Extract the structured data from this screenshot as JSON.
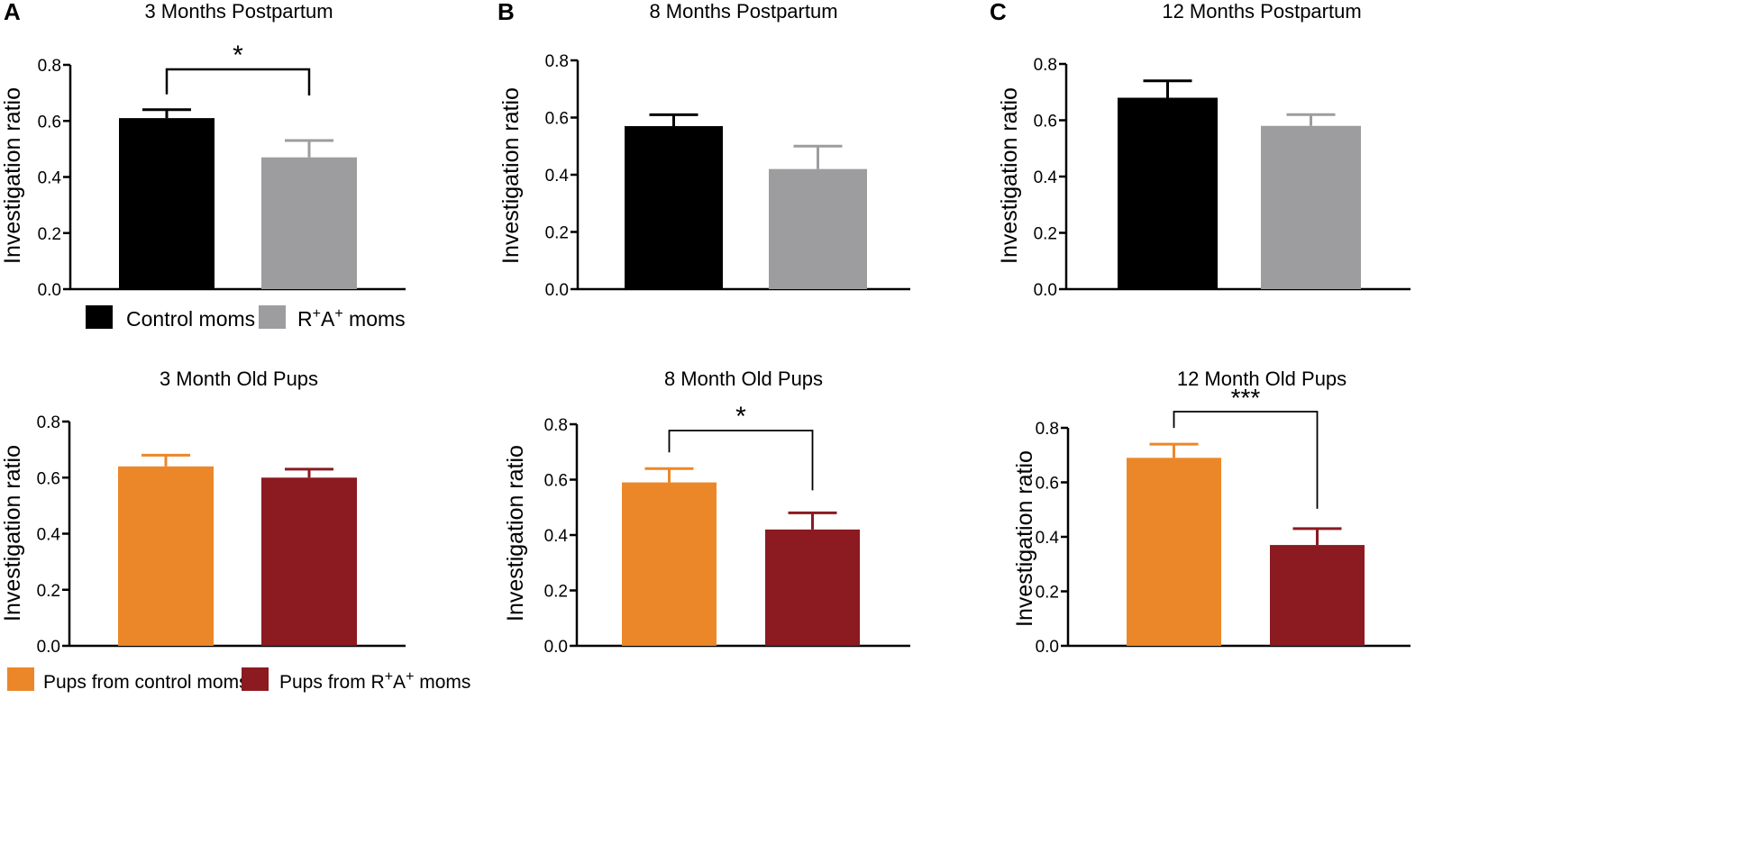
{
  "colors": {
    "control_moms": "#000000",
    "ra_moms": "#9d9d9f",
    "pups_control": "#ec8729",
    "pups_ra": "#8b1a21"
  },
  "legend_moms": {
    "control": "Control moms",
    "ra_base_1": "R",
    "ra_sup_1": "+",
    "ra_base_2": "A",
    "ra_sup_2": "+",
    "ra_suffix": " moms"
  },
  "legend_pups": {
    "control": "Pups from control moms",
    "ra_prefix": "Pups from R",
    "ra_sup_1": "+",
    "ra_base_2": "A",
    "ra_sup_2": "+",
    "ra_suffix": " moms"
  },
  "chart_data": [
    {
      "id": "A-top",
      "panel_letter": "A",
      "type": "bar",
      "title": "3 Months Postpartum",
      "ylabel": "Investigation ratio",
      "ylim": [
        0,
        0.8
      ],
      "yticks": [
        "0.0",
        "0.2",
        "0.4",
        "0.6",
        "0.8"
      ],
      "categories": [
        "Control moms",
        "R+A+ moms"
      ],
      "values": [
        0.61,
        0.47
      ],
      "errors": [
        0.03,
        0.06
      ],
      "colors": [
        "#000000",
        "#9d9d9f"
      ],
      "significance": "*"
    },
    {
      "id": "B-top",
      "panel_letter": "B",
      "type": "bar",
      "title": "8 Months Postpartum",
      "ylabel": "Investigation ratio",
      "ylim": [
        0,
        0.8
      ],
      "yticks": [
        "0.0",
        "0.2",
        "0.4",
        "0.6",
        "0.8"
      ],
      "categories": [
        "Control moms",
        "R+A+ moms"
      ],
      "values": [
        0.57,
        0.42
      ],
      "errors": [
        0.04,
        0.08
      ],
      "colors": [
        "#000000",
        "#9d9d9f"
      ],
      "significance": ""
    },
    {
      "id": "C-top",
      "panel_letter": "C",
      "type": "bar",
      "title": "12 Months Postpartum",
      "ylabel": "Investigation ratio",
      "ylim": [
        0,
        0.8
      ],
      "yticks": [
        "0.0",
        "0.2",
        "0.4",
        "0.6",
        "0.8"
      ],
      "categories": [
        "Control moms",
        "R+A+ moms"
      ],
      "values": [
        0.68,
        0.58
      ],
      "errors": [
        0.06,
        0.04
      ],
      "colors": [
        "#000000",
        "#9d9d9f"
      ],
      "significance": ""
    },
    {
      "id": "A-bottom",
      "panel_letter": "",
      "type": "bar",
      "title": "3 Month Old Pups",
      "ylabel": "Investigation ratio",
      "ylim": [
        0,
        0.8
      ],
      "yticks": [
        "0.0",
        "0.2",
        "0.4",
        "0.6",
        "0.8"
      ],
      "categories": [
        "Pups from control moms",
        "Pups from R+A+ moms"
      ],
      "values": [
        0.64,
        0.6
      ],
      "errors": [
        0.04,
        0.03
      ],
      "colors": [
        "#ec8729",
        "#8b1a21"
      ],
      "significance": ""
    },
    {
      "id": "B-bottom",
      "panel_letter": "",
      "type": "bar",
      "title": "8 Month Old Pups",
      "ylabel": "Investigation ratio",
      "ylim": [
        0,
        0.8
      ],
      "yticks": [
        "0.0",
        "0.2",
        "0.4",
        "0.6",
        "0.8"
      ],
      "categories": [
        "Pups from control moms",
        "Pups from R+A+ moms"
      ],
      "values": [
        0.59,
        0.42
      ],
      "errors": [
        0.05,
        0.06
      ],
      "colors": [
        "#ec8729",
        "#8b1a21"
      ],
      "significance": "*"
    },
    {
      "id": "C-bottom",
      "panel_letter": "",
      "type": "bar",
      "title": "12 Month Old Pups",
      "ylabel": "Investigation ratio",
      "ylim": [
        0,
        0.8
      ],
      "yticks": [
        "0.0",
        "0.2",
        "0.4",
        "0.6",
        "0.8"
      ],
      "categories": [
        "Pups from control moms",
        "Pups from R+A+ moms"
      ],
      "values": [
        0.69,
        0.37
      ],
      "errors": [
        0.05,
        0.06
      ],
      "colors": [
        "#ec8729",
        "#8b1a21"
      ],
      "significance": "***"
    }
  ]
}
